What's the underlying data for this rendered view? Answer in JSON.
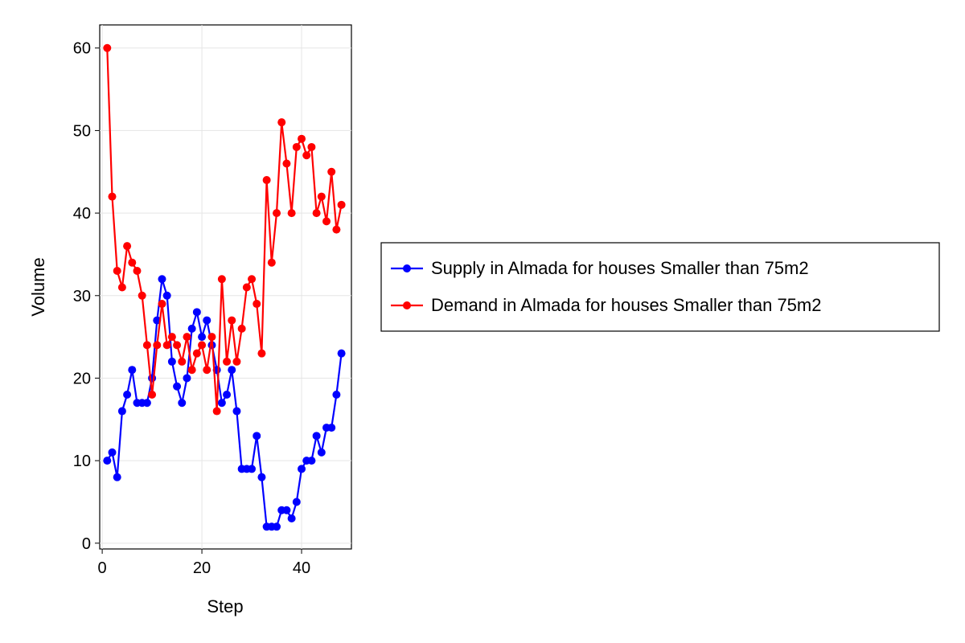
{
  "chart_data": {
    "type": "line",
    "title": "",
    "xlabel": "Step",
    "ylabel": "Volume",
    "xlim": [
      -0.5,
      50
    ],
    "ylim": [
      -0.7,
      62.8
    ],
    "xticks": [
      0,
      20,
      40
    ],
    "yticks": [
      0,
      10,
      20,
      30,
      40,
      50,
      60
    ],
    "grid": true,
    "legend_position": "right",
    "x": [
      1,
      2,
      3,
      4,
      5,
      6,
      7,
      8,
      9,
      10,
      11,
      12,
      13,
      14,
      15,
      16,
      17,
      18,
      19,
      20,
      21,
      22,
      23,
      24,
      25,
      26,
      27,
      28,
      29,
      30,
      31,
      32,
      33,
      34,
      35,
      36,
      37,
      38,
      39,
      40,
      41,
      42,
      43,
      44,
      45,
      46,
      47,
      48
    ],
    "series": [
      {
        "name": "Supply in Almada for houses Smaller than 75m2",
        "color": "#0000ff",
        "values": [
          10,
          11,
          8,
          16,
          18,
          21,
          17,
          17,
          17,
          20,
          27,
          32,
          30,
          22,
          19,
          17,
          20,
          26,
          28,
          25,
          27,
          24,
          21,
          17,
          18,
          21,
          16,
          9,
          9,
          9,
          13,
          8,
          2,
          2,
          2,
          4,
          4,
          3,
          5,
          9,
          10,
          10,
          13,
          11,
          14,
          14,
          18,
          23
        ]
      },
      {
        "name": "Demand in Almada for houses Smaller than 75m2",
        "color": "#ff0000",
        "values": [
          60,
          42,
          33,
          31,
          36,
          34,
          33,
          30,
          24,
          18,
          24,
          29,
          24,
          25,
          24,
          22,
          25,
          21,
          23,
          24,
          21,
          25,
          16,
          32,
          22,
          27,
          22,
          26,
          31,
          32,
          29,
          23,
          44,
          34,
          40,
          51,
          46,
          40,
          48,
          49,
          47,
          48,
          40,
          42,
          39,
          45,
          38,
          41
        ]
      }
    ]
  }
}
